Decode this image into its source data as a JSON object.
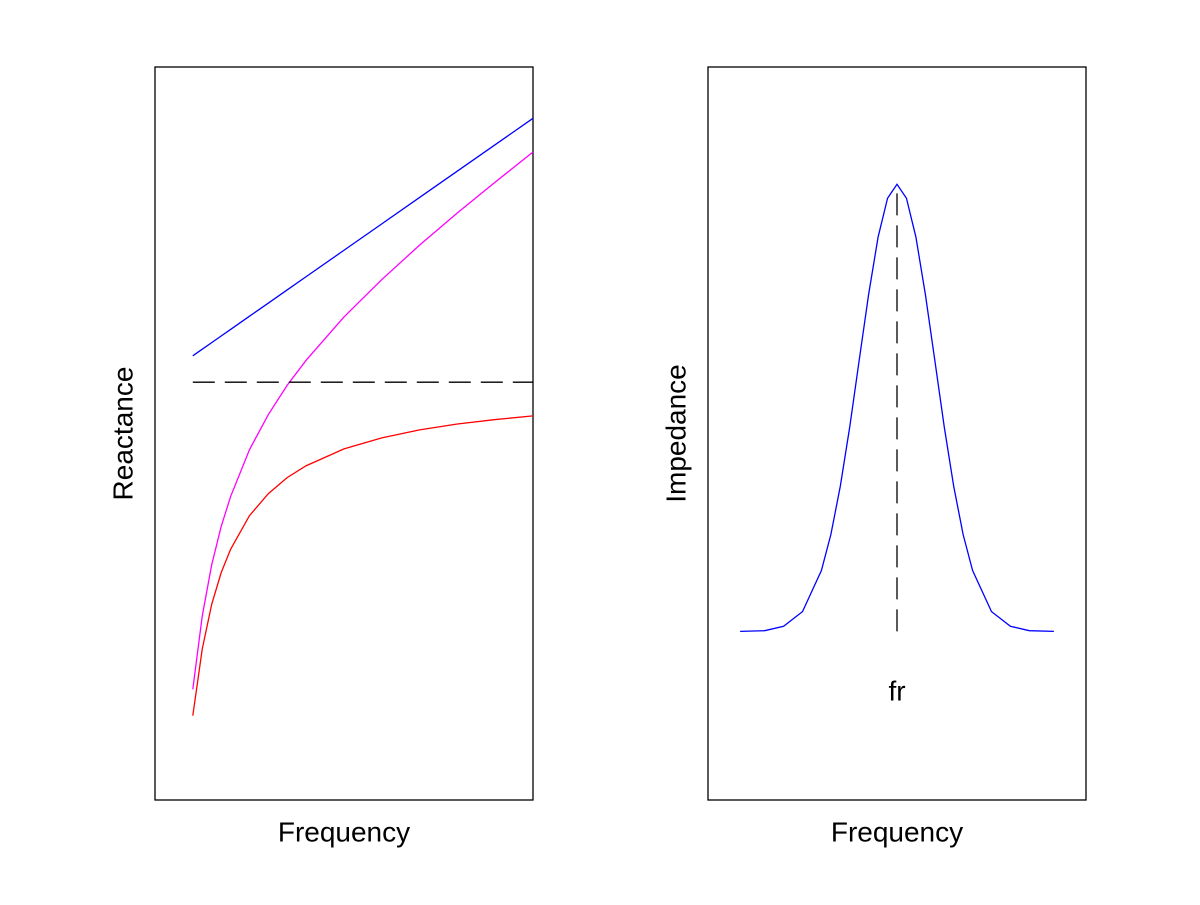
{
  "chart_data": [
    {
      "type": "line",
      "xlabel": "Frequency",
      "ylabel": "Reactance",
      "xlim": [
        0,
        10
      ],
      "ylim": [
        -57,
        43
      ],
      "x": [
        1,
        1.25,
        1.5,
        1.75,
        2,
        2.5,
        3,
        3.5,
        4,
        5,
        6,
        7,
        8,
        9,
        10
      ],
      "series": [
        {
          "color": "#0000ff",
          "values": [
            3.6,
            4.5,
            5.4,
            6.3,
            7.2,
            9,
            10.8,
            12.6,
            14.4,
            18,
            21.6,
            25.2,
            28.8,
            32.4,
            36
          ]
        },
        {
          "color": "#ff00ff",
          "values": [
            -41.9,
            -31.9,
            -24.9,
            -19.7,
            -15.6,
            -9.2,
            -4.4,
            -0.4,
            3.0,
            8.9,
            14.0,
            18.7,
            23.1,
            27.3,
            31.4
          ]
        },
        {
          "color": "#ff0000",
          "values": [
            -45.5,
            -36.4,
            -30.3,
            -26.0,
            -22.8,
            -18.2,
            -15.2,
            -13.0,
            -11.4,
            -9.1,
            -7.6,
            -6.5,
            -5.7,
            -5.1,
            -4.6
          ]
        },
        {
          "color": "#000000",
          "dashed": true,
          "values": [
            0,
            0,
            0,
            0,
            0,
            0,
            0,
            0,
            0,
            0,
            0,
            0,
            0,
            0,
            0
          ]
        }
      ]
    },
    {
      "type": "line",
      "xlabel": "Frequency",
      "ylabel": "Impedance",
      "xlim": [
        -5,
        5
      ],
      "ylim": [
        0,
        100
      ],
      "series": [
        {
          "color": "#0000ff",
          "x": [
            -4.15,
            -3.5,
            -3,
            -2.5,
            -2,
            -1.75,
            -1.5,
            -1.25,
            -1,
            -0.75,
            -0.5,
            -0.25,
            0,
            0.25,
            0.5,
            0.75,
            1,
            1.25,
            1.5,
            1.75,
            2,
            2.5,
            3,
            3.5,
            4.15
          ],
          "values": [
            23,
            23.1,
            23.7,
            25.7,
            31.3,
            36.2,
            42.8,
            50.9,
            60.0,
            69.0,
            76.8,
            82.1,
            84,
            82.1,
            76.8,
            69.0,
            60.0,
            50.9,
            42.8,
            36.2,
            31.3,
            25.7,
            23.7,
            23.1,
            23
          ]
        },
        {
          "color": "#000000",
          "dashed": true,
          "x": [
            0,
            0
          ],
          "values": [
            23,
            84
          ]
        }
      ],
      "annotations": [
        {
          "text": "fr",
          "x": 0,
          "y": 14.6
        }
      ]
    }
  ]
}
